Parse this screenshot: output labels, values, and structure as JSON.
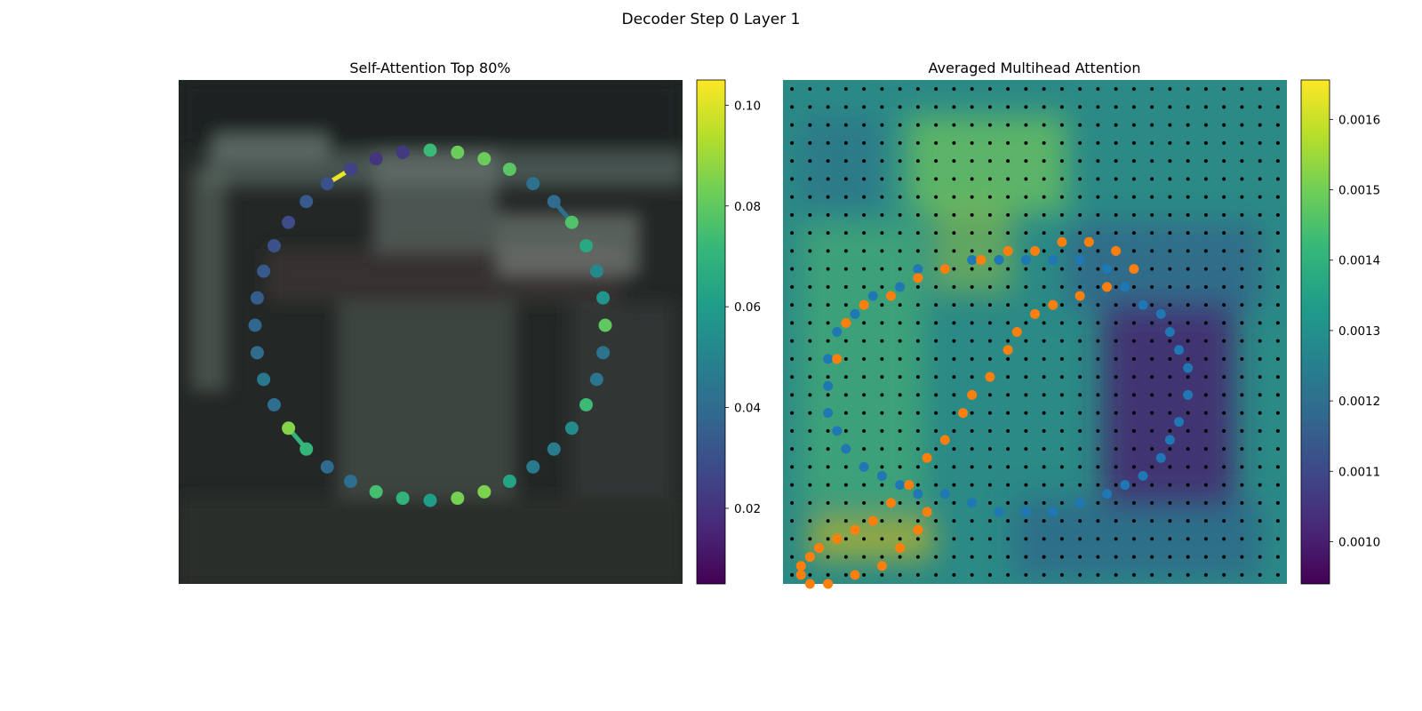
{
  "figure": {
    "title": "Decoder Step 0 Layer 1"
  },
  "palette": [
    "#440154",
    "#482878",
    "#3e4989",
    "#31688e",
    "#26828e",
    "#1f9e89",
    "#35b779",
    "#6ece58",
    "#b5de2b",
    "#fde725"
  ],
  "chart_data": [
    {
      "type": "scatter",
      "title": "Self-Attention Top 80%",
      "background": "blurred photograph (dark scene with a vehicle)",
      "colorbar": {
        "min": 0.005,
        "max": 0.105,
        "ticks": [
          "0.02",
          "0.04",
          "0.06",
          "0.08",
          "0.10"
        ],
        "tick_values": [
          0.02,
          0.04,
          0.06,
          0.08,
          0.1
        ],
        "colormap": "viridis"
      },
      "points": [
        {
          "angle": 0,
          "value": 0.073
        },
        {
          "angle": 9,
          "value": 0.082
        },
        {
          "angle": 18,
          "value": 0.082
        },
        {
          "angle": 27,
          "value": 0.079
        },
        {
          "angle": 36,
          "value": 0.042
        },
        {
          "angle": 45,
          "value": 0.04
        },
        {
          "angle": 54,
          "value": 0.077
        },
        {
          "angle": 63,
          "value": 0.065
        },
        {
          "angle": 72,
          "value": 0.052
        },
        {
          "angle": 81,
          "value": 0.057
        },
        {
          "angle": 90,
          "value": 0.08
        },
        {
          "angle": 99,
          "value": 0.043
        },
        {
          "angle": 108,
          "value": 0.044
        },
        {
          "angle": 117,
          "value": 0.073
        },
        {
          "angle": 126,
          "value": 0.053
        },
        {
          "angle": 135,
          "value": 0.047
        },
        {
          "angle": 144,
          "value": 0.046
        },
        {
          "angle": 153,
          "value": 0.063
        },
        {
          "angle": 162,
          "value": 0.085
        },
        {
          "angle": 171,
          "value": 0.084
        },
        {
          "angle": 180,
          "value": 0.06
        },
        {
          "angle": 189,
          "value": 0.07
        },
        {
          "angle": 198,
          "value": 0.075
        },
        {
          "angle": 207,
          "value": 0.041
        },
        {
          "angle": 216,
          "value": 0.039
        },
        {
          "angle": 225,
          "value": 0.071
        },
        {
          "angle": 234,
          "value": 0.086
        },
        {
          "angle": 243,
          "value": 0.041
        },
        {
          "angle": 252,
          "value": 0.045
        },
        {
          "angle": 261,
          "value": 0.04
        },
        {
          "angle": 270,
          "value": 0.038
        },
        {
          "angle": 279,
          "value": 0.034
        },
        {
          "angle": 288,
          "value": 0.033
        },
        {
          "angle": 297,
          "value": 0.03
        },
        {
          "angle": 306,
          "value": 0.028
        },
        {
          "angle": 315,
          "value": 0.033
        },
        {
          "angle": 324,
          "value": 0.03
        },
        {
          "angle": 333,
          "value": 0.025
        },
        {
          "angle": 342,
          "value": 0.02
        },
        {
          "angle": 351,
          "value": 0.022
        }
      ],
      "links": [
        {
          "from": 6,
          "to": 5,
          "value": 0.042
        },
        {
          "from": 36,
          "to": 37,
          "value": 0.102
        },
        {
          "from": 25,
          "to": 26,
          "value": 0.07
        }
      ]
    },
    {
      "type": "heatmap",
      "title": "Averaged Multihead Attention",
      "colorbar": {
        "min": 0.00094,
        "max": 0.001656,
        "ticks": [
          "0.0010",
          "0.0011",
          "0.0012",
          "0.0013",
          "0.0014",
          "0.0015",
          "0.0016"
        ],
        "tick_values": [
          0.001,
          0.0011,
          0.0012,
          0.0013,
          0.0014,
          0.0015,
          0.0016
        ],
        "colormap": "viridis"
      },
      "grid_dots": {
        "rows": 28,
        "cols": 28,
        "color": "#000000"
      },
      "series": [
        {
          "color": "#1f77b4",
          "points": [
            [
              10,
              24
            ],
            [
              13,
              23
            ],
            [
              15,
              21
            ],
            [
              18,
              21
            ],
            [
              21,
              20
            ],
            [
              24,
              20
            ],
            [
              27,
              20
            ],
            [
              30,
              20
            ],
            [
              33,
              20
            ],
            [
              36,
              21
            ],
            [
              38,
              23
            ],
            [
              40,
              25
            ],
            [
              42,
              26
            ],
            [
              43,
              28
            ],
            [
              44,
              30
            ],
            [
              45,
              32
            ],
            [
              45,
              35
            ],
            [
              44,
              38
            ],
            [
              43,
              40
            ],
            [
              42,
              42
            ],
            [
              40,
              44
            ],
            [
              38,
              45
            ],
            [
              36,
              46
            ],
            [
              33,
              47
            ],
            [
              30,
              48
            ],
            [
              27,
              48
            ],
            [
              24,
              48
            ],
            [
              21,
              47
            ],
            [
              18,
              46
            ],
            [
              15,
              46
            ],
            [
              13,
              45
            ],
            [
              11,
              44
            ],
            [
              9,
              43
            ],
            [
              7,
              41
            ],
            [
              6,
              39
            ],
            [
              5,
              37
            ],
            [
              5,
              34
            ],
            [
              5,
              31
            ],
            [
              6,
              28
            ],
            [
              8,
              26
            ]
          ]
        },
        {
          "color": "#ff7f0e",
          "points": [
            [
              6,
              31
            ],
            [
              7,
              27
            ],
            [
              9,
              25
            ],
            [
              12,
              24
            ],
            [
              15,
              22
            ],
            [
              18,
              21
            ],
            [
              22,
              20
            ],
            [
              25,
              19
            ],
            [
              28,
              19
            ],
            [
              31,
              18
            ],
            [
              34,
              18
            ],
            [
              37,
              19
            ],
            [
              39,
              21
            ],
            [
              36,
              23
            ],
            [
              33,
              24
            ],
            [
              30,
              25
            ],
            [
              28,
              26
            ],
            [
              26,
              28
            ],
            [
              25,
              30
            ],
            [
              23,
              33
            ],
            [
              21,
              35
            ],
            [
              20,
              37
            ],
            [
              18,
              40
            ],
            [
              16,
              42
            ],
            [
              14,
              45
            ],
            [
              12,
              47
            ],
            [
              10,
              49
            ],
            [
              8,
              50
            ],
            [
              6,
              51
            ],
            [
              4,
              52
            ],
            [
              3,
              53
            ],
            [
              2,
              54
            ],
            [
              2,
              55
            ],
            [
              3,
              56
            ],
            [
              5,
              56
            ],
            [
              8,
              55
            ],
            [
              11,
              54
            ],
            [
              13,
              52
            ],
            [
              15,
              50
            ],
            [
              16,
              48
            ]
          ]
        }
      ]
    }
  ]
}
